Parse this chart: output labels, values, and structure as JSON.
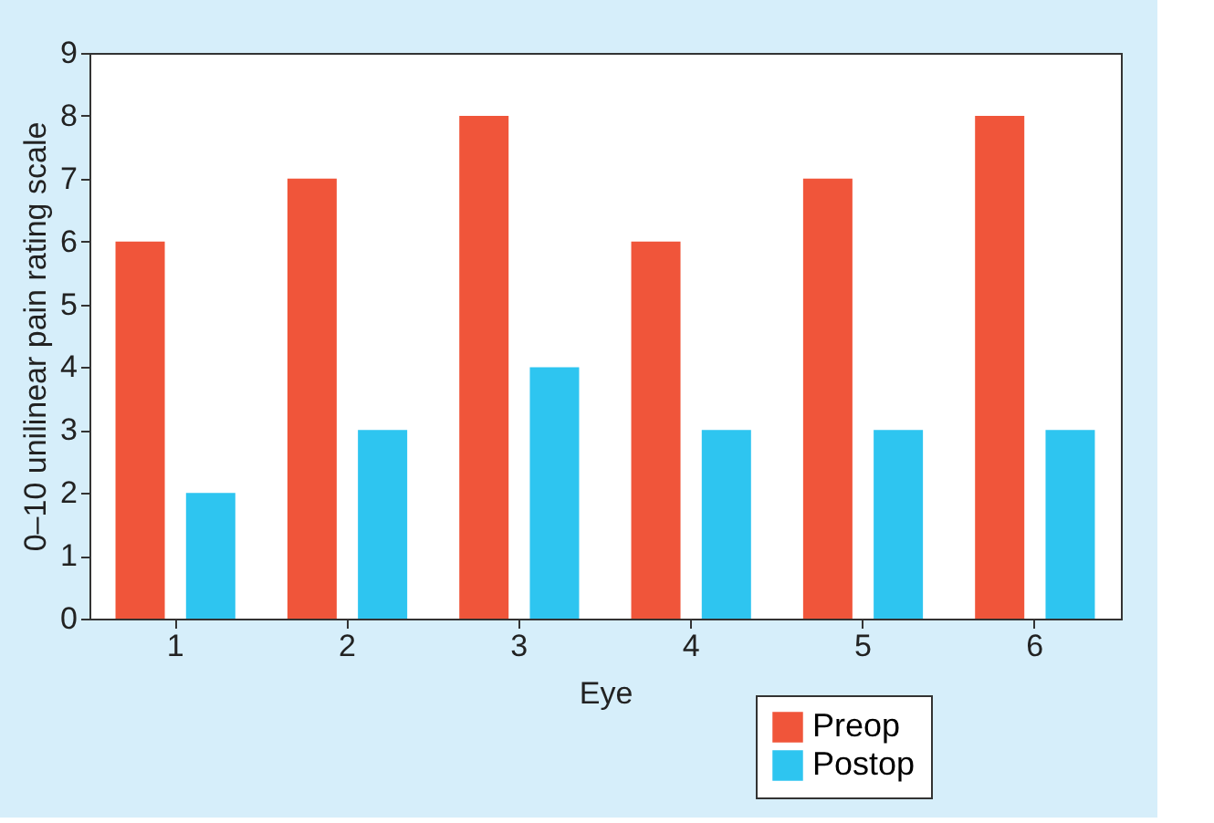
{
  "chart_data": {
    "type": "bar",
    "xlabel": "Eye",
    "ylabel": "0–10 unilinear pain rating scale",
    "categories": [
      "1",
      "2",
      "3",
      "4",
      "5",
      "6"
    ],
    "series": [
      {
        "name": "Preop",
        "color": "#f0553a",
        "values": [
          6,
          7,
          8,
          6,
          7,
          8
        ]
      },
      {
        "name": "Postop",
        "color": "#2ec5f0",
        "values": [
          2,
          3,
          4,
          3,
          3,
          3
        ]
      }
    ],
    "ylim": [
      0,
      9
    ],
    "yticks": [
      0,
      1,
      2,
      3,
      4,
      5,
      6,
      7,
      8,
      9
    ],
    "grid": false,
    "legend": "bottom right"
  }
}
